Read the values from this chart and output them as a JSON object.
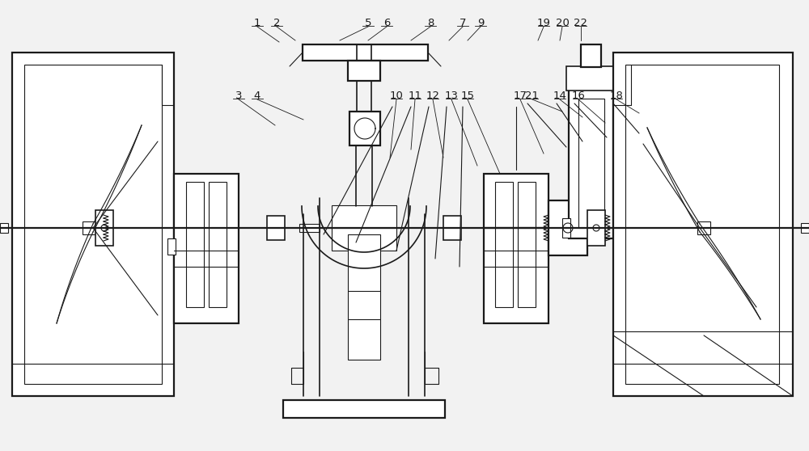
{
  "bg_color": "#f2f2f2",
  "line_color": "#1a1a1a",
  "fig_width": 10.0,
  "fig_height": 5.58,
  "labels_info": [
    [
      1,
      318,
      28,
      345,
      52
    ],
    [
      2,
      342,
      28,
      365,
      50
    ],
    [
      3,
      295,
      118,
      340,
      155
    ],
    [
      4,
      318,
      118,
      375,
      148
    ],
    [
      5,
      455,
      28,
      420,
      50
    ],
    [
      6,
      478,
      28,
      455,
      50
    ],
    [
      7,
      572,
      28,
      555,
      50
    ],
    [
      8,
      532,
      28,
      508,
      50
    ],
    [
      9,
      594,
      28,
      578,
      50
    ],
    [
      10,
      490,
      118,
      482,
      195
    ],
    [
      11,
      513,
      118,
      508,
      185
    ],
    [
      12,
      535,
      118,
      548,
      195
    ],
    [
      13,
      558,
      118,
      590,
      205
    ],
    [
      14,
      692,
      118,
      720,
      145
    ],
    [
      15,
      578,
      118,
      618,
      215
    ],
    [
      16,
      715,
      118,
      748,
      152
    ],
    [
      17,
      643,
      118,
      672,
      190
    ],
    [
      18,
      762,
      118,
      790,
      140
    ],
    [
      19,
      672,
      28,
      665,
      50
    ],
    [
      20,
      695,
      28,
      692,
      50
    ],
    [
      21,
      658,
      118,
      695,
      138
    ],
    [
      22,
      718,
      28,
      718,
      50
    ]
  ]
}
